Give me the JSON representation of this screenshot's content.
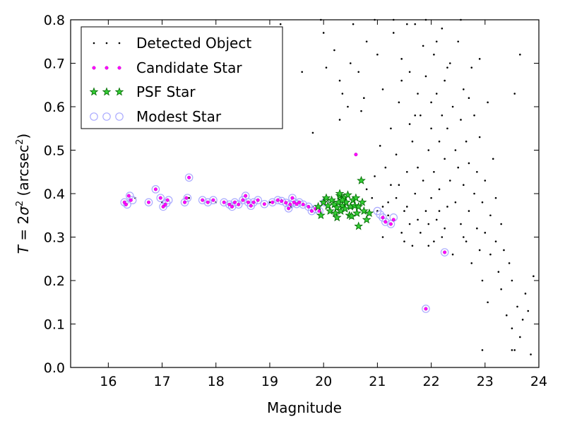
{
  "chart_data": {
    "type": "scatter",
    "xlabel": "Magnitude",
    "ylabel_parts": {
      "var": "T",
      "eq": " = 2",
      "sigma": "σ",
      "sq": "2",
      "unit_open": " (arcsec",
      "unit_close": ")"
    },
    "xlim": [
      15.3,
      24.0
    ],
    "ylim": [
      0.0,
      0.8
    ],
    "x_ticks": [
      16,
      17,
      18,
      19,
      20,
      21,
      22,
      23,
      24
    ],
    "x_tick_labels": [
      "16",
      "17",
      "18",
      "19",
      "20",
      "21",
      "22",
      "23",
      "24"
    ],
    "y_ticks": [
      0.0,
      0.1,
      0.2,
      0.3,
      0.4,
      0.5,
      0.6,
      0.7,
      0.8
    ],
    "y_tick_labels": [
      "0.0",
      "0.1",
      "0.2",
      "0.3",
      "0.4",
      "0.5",
      "0.6",
      "0.7",
      "0.8"
    ],
    "grid": false,
    "legend_position": "upper-left",
    "series": [
      {
        "name": "Detected Object",
        "marker": "dot",
        "color": "#000000",
        "points": [
          [
            16.3,
            0.38
          ],
          [
            16.5,
            0.39
          ],
          [
            17.0,
            0.38
          ],
          [
            17.5,
            0.39
          ],
          [
            18.0,
            0.38
          ],
          [
            18.3,
            0.37
          ],
          [
            18.6,
            0.38
          ],
          [
            19.0,
            0.38
          ],
          [
            19.4,
            0.37
          ],
          [
            19.8,
            0.37
          ],
          [
            19.2,
            0.79
          ],
          [
            19.1,
            0.66
          ],
          [
            19.6,
            0.68
          ],
          [
            19.8,
            0.54
          ],
          [
            19.95,
            0.8
          ],
          [
            20.0,
            0.77
          ],
          [
            20.05,
            0.69
          ],
          [
            20.2,
            0.73
          ],
          [
            20.3,
            0.57
          ],
          [
            20.45,
            0.6
          ],
          [
            20.3,
            0.66
          ],
          [
            20.35,
            0.63
          ],
          [
            20.5,
            0.7
          ],
          [
            20.55,
            0.79
          ],
          [
            20.6,
            0.49
          ],
          [
            20.65,
            0.68
          ],
          [
            20.7,
            0.59
          ],
          [
            20.75,
            0.62
          ],
          [
            20.8,
            0.75
          ],
          [
            20.8,
            0.41
          ],
          [
            20.9,
            0.39
          ],
          [
            20.95,
            0.44
          ],
          [
            20.95,
            0.8
          ],
          [
            21.0,
            0.36
          ],
          [
            21.05,
            0.51
          ],
          [
            21.0,
            0.72
          ],
          [
            21.1,
            0.37
          ],
          [
            21.1,
            0.64
          ],
          [
            21.1,
            0.3
          ],
          [
            21.15,
            0.46
          ],
          [
            21.2,
            0.35
          ],
          [
            21.2,
            0.38
          ],
          [
            21.25,
            0.55
          ],
          [
            21.3,
            0.77
          ],
          [
            21.35,
            0.49
          ],
          [
            21.3,
            0.34
          ],
          [
            21.4,
            0.61
          ],
          [
            21.4,
            0.42
          ],
          [
            21.45,
            0.71
          ],
          [
            21.5,
            0.36
          ],
          [
            21.5,
            0.29
          ],
          [
            21.55,
            0.45
          ],
          [
            21.6,
            0.56
          ],
          [
            21.6,
            0.68
          ],
          [
            21.6,
            0.33
          ],
          [
            21.65,
            0.52
          ],
          [
            21.7,
            0.79
          ],
          [
            21.7,
            0.4
          ],
          [
            21.75,
            0.63
          ],
          [
            21.75,
            0.46
          ],
          [
            21.8,
            0.31
          ],
          [
            21.8,
            0.58
          ],
          [
            21.85,
            0.74
          ],
          [
            21.85,
            0.43
          ],
          [
            21.9,
            0.36
          ],
          [
            21.9,
            0.67
          ],
          [
            21.95,
            0.5
          ],
          [
            21.95,
            0.28
          ],
          [
            22.0,
            0.61
          ],
          [
            22.0,
            0.39
          ],
          [
            22.0,
            0.55
          ],
          [
            22.05,
            0.72
          ],
          [
            22.05,
            0.45
          ],
          [
            22.1,
            0.34
          ],
          [
            22.1,
            0.63
          ],
          [
            22.15,
            0.52
          ],
          [
            22.15,
            0.41
          ],
          [
            22.2,
            0.78
          ],
          [
            22.2,
            0.58
          ],
          [
            22.2,
            0.3
          ],
          [
            22.25,
            0.48
          ],
          [
            22.25,
            0.66
          ],
          [
            22.3,
            0.37
          ],
          [
            22.3,
            0.55
          ],
          [
            22.35,
            0.43
          ],
          [
            22.35,
            0.7
          ],
          [
            22.4,
            0.26
          ],
          [
            22.4,
            0.6
          ],
          [
            22.45,
            0.5
          ],
          [
            22.45,
            0.38
          ],
          [
            22.5,
            0.46
          ],
          [
            22.5,
            0.75
          ],
          [
            22.55,
            0.33
          ],
          [
            22.55,
            0.57
          ],
          [
            22.6,
            0.42
          ],
          [
            22.6,
            0.64
          ],
          [
            22.65,
            0.29
          ],
          [
            22.65,
            0.52
          ],
          [
            22.7,
            0.36
          ],
          [
            22.7,
            0.47
          ],
          [
            22.75,
            0.69
          ],
          [
            22.75,
            0.24
          ],
          [
            22.8,
            0.4
          ],
          [
            22.8,
            0.58
          ],
          [
            22.85,
            0.32
          ],
          [
            22.85,
            0.45
          ],
          [
            22.9,
            0.27
          ],
          [
            22.9,
            0.53
          ],
          [
            22.95,
            0.38
          ],
          [
            22.95,
            0.2
          ],
          [
            23.0,
            0.43
          ],
          [
            23.0,
            0.31
          ],
          [
            23.05,
            0.61
          ],
          [
            23.05,
            0.15
          ],
          [
            23.1,
            0.35
          ],
          [
            23.1,
            0.26
          ],
          [
            23.15,
            0.48
          ],
          [
            23.2,
            0.29
          ],
          [
            23.2,
            0.39
          ],
          [
            23.25,
            0.22
          ],
          [
            23.3,
            0.33
          ],
          [
            23.3,
            0.18
          ],
          [
            23.35,
            0.27
          ],
          [
            23.4,
            0.12
          ],
          [
            23.45,
            0.24
          ],
          [
            23.5,
            0.09
          ],
          [
            23.5,
            0.2
          ],
          [
            23.55,
            0.04
          ],
          [
            23.6,
            0.14
          ],
          [
            23.65,
            0.07
          ],
          [
            23.7,
            0.11
          ],
          [
            23.75,
            0.17
          ],
          [
            23.8,
            0.13
          ],
          [
            23.9,
            0.21
          ],
          [
            23.85,
            0.03
          ],
          [
            22.95,
            0.04
          ],
          [
            23.5,
            0.04
          ],
          [
            23.65,
            0.72
          ],
          [
            23.55,
            0.63
          ],
          [
            22.6,
            0.3
          ],
          [
            21.3,
            0.8
          ],
          [
            21.45,
            0.66
          ],
          [
            21.55,
            0.79
          ],
          [
            21.7,
            0.58
          ],
          [
            21.9,
            0.8
          ],
          [
            22.1,
            0.75
          ],
          [
            22.3,
            0.69
          ],
          [
            22.55,
            0.8
          ],
          [
            22.7,
            0.62
          ],
          [
            22.9,
            0.71
          ],
          [
            21.25,
            0.42
          ],
          [
            21.35,
            0.39
          ],
          [
            21.45,
            0.31
          ],
          [
            21.55,
            0.37
          ],
          [
            21.65,
            0.28
          ],
          [
            21.75,
            0.34
          ],
          [
            21.95,
            0.33
          ],
          [
            22.05,
            0.29
          ],
          [
            22.15,
            0.36
          ],
          [
            22.25,
            0.32
          ]
        ]
      },
      {
        "name": "Candidate Star",
        "marker": "dot",
        "color": "#ff00ff",
        "points": [
          [
            16.3,
            0.38
          ],
          [
            16.33,
            0.375
          ],
          [
            16.38,
            0.395
          ],
          [
            16.42,
            0.385
          ],
          [
            16.75,
            0.38
          ],
          [
            16.88,
            0.41
          ],
          [
            16.97,
            0.39
          ],
          [
            17.02,
            0.37
          ],
          [
            17.06,
            0.375
          ],
          [
            17.1,
            0.385
          ],
          [
            17.42,
            0.38
          ],
          [
            17.45,
            0.39
          ],
          [
            17.5,
            0.437
          ],
          [
            17.75,
            0.385
          ],
          [
            17.85,
            0.38
          ],
          [
            17.95,
            0.385
          ],
          [
            18.15,
            0.38
          ],
          [
            18.25,
            0.375
          ],
          [
            18.3,
            0.37
          ],
          [
            18.35,
            0.38
          ],
          [
            18.42,
            0.375
          ],
          [
            18.5,
            0.385
          ],
          [
            18.55,
            0.395
          ],
          [
            18.6,
            0.38
          ],
          [
            18.65,
            0.372
          ],
          [
            18.7,
            0.38
          ],
          [
            18.78,
            0.385
          ],
          [
            18.9,
            0.376
          ],
          [
            19.05,
            0.38
          ],
          [
            19.15,
            0.385
          ],
          [
            19.22,
            0.383
          ],
          [
            19.3,
            0.379
          ],
          [
            19.35,
            0.366
          ],
          [
            19.38,
            0.375
          ],
          [
            19.42,
            0.39
          ],
          [
            19.45,
            0.38
          ],
          [
            19.5,
            0.376
          ],
          [
            19.55,
            0.38
          ],
          [
            19.62,
            0.375
          ],
          [
            19.72,
            0.37
          ],
          [
            19.78,
            0.36
          ],
          [
            19.85,
            0.365
          ],
          [
            19.92,
            0.36
          ],
          [
            20.02,
            0.38
          ],
          [
            20.6,
            0.49
          ],
          [
            21.25,
            0.33
          ],
          [
            21.3,
            0.34
          ],
          [
            21.1,
            0.345
          ],
          [
            21.15,
            0.335
          ],
          [
            21.9,
            0.135
          ],
          [
            22.25,
            0.265
          ]
        ]
      },
      {
        "name": "PSF Star",
        "marker": "star",
        "color": "#00aa00",
        "points": [
          [
            19.9,
            0.37
          ],
          [
            19.95,
            0.35
          ],
          [
            20.0,
            0.38
          ],
          [
            20.05,
            0.39
          ],
          [
            20.08,
            0.372
          ],
          [
            20.12,
            0.36
          ],
          [
            20.15,
            0.385
          ],
          [
            20.2,
            0.375
          ],
          [
            20.22,
            0.355
          ],
          [
            20.25,
            0.368
          ],
          [
            20.28,
            0.38
          ],
          [
            20.3,
            0.395
          ],
          [
            20.32,
            0.36
          ],
          [
            20.35,
            0.372
          ],
          [
            20.38,
            0.39
          ],
          [
            20.4,
            0.365
          ],
          [
            20.42,
            0.38
          ],
          [
            20.45,
            0.397
          ],
          [
            20.48,
            0.35
          ],
          [
            20.5,
            0.37
          ],
          [
            20.52,
            0.348
          ],
          [
            20.55,
            0.385
          ],
          [
            20.58,
            0.372
          ],
          [
            20.6,
            0.39
          ],
          [
            20.62,
            0.355
          ],
          [
            20.65,
            0.325
          ],
          [
            20.7,
            0.43
          ],
          [
            20.72,
            0.38
          ],
          [
            20.75,
            0.36
          ],
          [
            20.8,
            0.34
          ],
          [
            20.85,
            0.355
          ],
          [
            20.3,
            0.4
          ],
          [
            20.35,
            0.385
          ],
          [
            20.25,
            0.345
          ],
          [
            20.65,
            0.37
          ]
        ]
      },
      {
        "name": "Modest Star",
        "marker": "circle",
        "color": "#aaaaff",
        "points": [
          [
            16.3,
            0.38
          ],
          [
            16.35,
            0.375
          ],
          [
            16.4,
            0.395
          ],
          [
            16.45,
            0.385
          ],
          [
            16.75,
            0.38
          ],
          [
            16.88,
            0.41
          ],
          [
            16.97,
            0.39
          ],
          [
            17.02,
            0.37
          ],
          [
            17.08,
            0.378
          ],
          [
            17.12,
            0.385
          ],
          [
            17.42,
            0.38
          ],
          [
            17.47,
            0.39
          ],
          [
            17.5,
            0.437
          ],
          [
            17.75,
            0.385
          ],
          [
            17.85,
            0.38
          ],
          [
            17.95,
            0.385
          ],
          [
            18.15,
            0.38
          ],
          [
            18.25,
            0.375
          ],
          [
            18.3,
            0.37
          ],
          [
            18.35,
            0.38
          ],
          [
            18.42,
            0.375
          ],
          [
            18.5,
            0.385
          ],
          [
            18.55,
            0.395
          ],
          [
            18.6,
            0.38
          ],
          [
            18.65,
            0.372
          ],
          [
            18.7,
            0.38
          ],
          [
            18.78,
            0.385
          ],
          [
            18.9,
            0.376
          ],
          [
            19.05,
            0.38
          ],
          [
            19.15,
            0.385
          ],
          [
            19.22,
            0.383
          ],
          [
            19.3,
            0.379
          ],
          [
            19.35,
            0.366
          ],
          [
            19.38,
            0.375
          ],
          [
            19.42,
            0.39
          ],
          [
            19.45,
            0.38
          ],
          [
            19.5,
            0.376
          ],
          [
            19.55,
            0.38
          ],
          [
            19.62,
            0.375
          ],
          [
            19.72,
            0.37
          ],
          [
            19.78,
            0.36
          ],
          [
            19.85,
            0.365
          ],
          [
            19.92,
            0.36
          ],
          [
            20.02,
            0.38
          ],
          [
            21.25,
            0.33
          ],
          [
            21.3,
            0.345
          ],
          [
            21.1,
            0.345
          ],
          [
            21.15,
            0.335
          ],
          [
            21.9,
            0.135
          ],
          [
            22.25,
            0.265
          ],
          [
            21.0,
            0.36
          ],
          [
            21.05,
            0.352
          ]
        ]
      }
    ]
  }
}
